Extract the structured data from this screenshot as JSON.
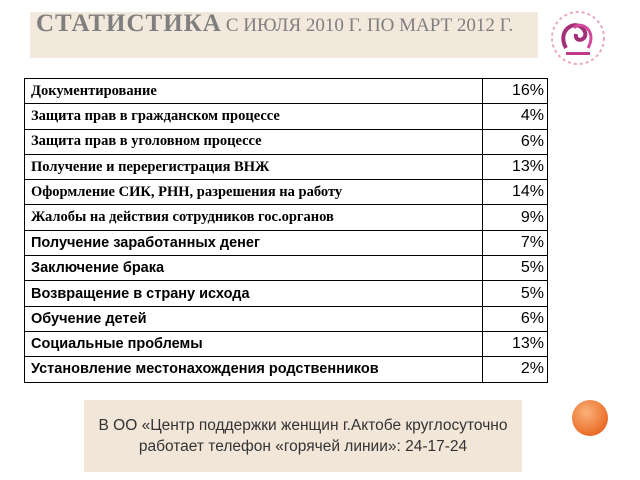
{
  "header": {
    "title": "СТАТИСТИКА",
    "subtitle": "С ИЮЛЯ 2010 Г. ПО МАРТ 2012 Г."
  },
  "table": {
    "rows": [
      [
        "Документирование",
        "16%"
      ],
      [
        "Защита прав в гражданском процессе",
        "4%"
      ],
      [
        "Защита прав в уголовном процессе",
        "6%"
      ],
      [
        "Получение и перерегистрация ВНЖ",
        "13%"
      ],
      [
        "Оформление СИК, РНН, разрешения на работу",
        "14%"
      ],
      [
        "Жалобы на действия сотрудников гос.органов",
        "9%"
      ],
      [
        "Получение заработанных денег",
        "7%"
      ],
      [
        "Заключение брака",
        "5%"
      ],
      [
        "Возвращение в страну исхода",
        "5%"
      ],
      [
        "Обучение детей",
        "6%"
      ],
      [
        "Социальные проблемы",
        "13%"
      ],
      [
        "Установление местонахождения родственников",
        "2%"
      ]
    ]
  },
  "note": "В ОО «Центр поддержки женщин г.Актобе круглосуточно работает телефон «горячей линии»: 24-17-24"
}
